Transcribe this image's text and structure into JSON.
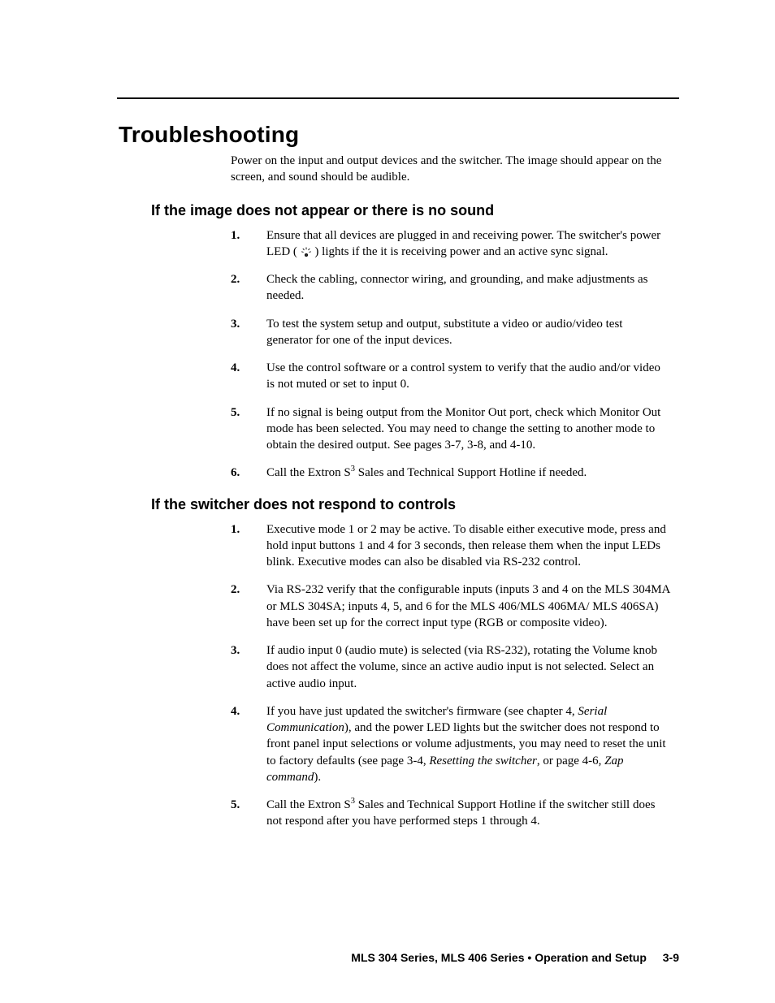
{
  "title": "Troubleshooting",
  "intro": "Power on the input and output devices and the switcher.  The image should appear on the screen, and sound should be audible.",
  "section_a": {
    "heading": "If the image does not appear or there is no sound",
    "steps": [
      {
        "pre": "Ensure that all devices are plugged in and receiving power.  The switcher's power LED (",
        "post": ") lights if the it is receiving power and an active sync signal."
      },
      {
        "text": "Check the cabling, connector wiring, and grounding, and make adjustments as needed."
      },
      {
        "text": "To test the system setup and output, substitute a video or audio/video test generator for one of the input devices."
      },
      {
        "text": "Use the control software or a control system to verify that the audio and/or video is not muted or set to input 0."
      },
      {
        "text": "If no signal is being output from the Monitor Out port, check which Monitor Out mode has been selected.  You may need to change the setting to another mode to obtain the desired output.  See pages 3-7, 3-8, and 4-10."
      },
      {
        "pre": "Call the Extron S",
        "sup": "3",
        "post": " Sales and Technical Support Hotline if needed."
      }
    ]
  },
  "section_b": {
    "heading": "If the switcher does not respond to controls",
    "steps": [
      {
        "text": "Executive mode 1 or 2 may be active.  To disable either executive mode, press and hold input buttons 1 and 4 for 3 seconds, then release them when the input LEDs blink.  Executive modes can also be disabled via RS-232 control."
      },
      {
        "text": "Via RS-232 verify that the configurable inputs (inputs 3 and 4 on the MLS 304MA or MLS 304SA; inputs 4, 5, and 6 for the MLS 406/MLS 406MA/ MLS 406SA) have been set up for the correct input type (RGB or composite video)."
      },
      {
        "text": "If audio input 0 (audio mute) is selected (via RS-232), rotating the Volume knob does not affect the volume, since an active audio input is not selected.  Select an active audio input."
      },
      {
        "html": "If you have just updated the switcher's firmware (see chapter 4, <em>Serial Communication</em>), and the power LED lights but the switcher does not respond to front panel input selections or volume adjustments, you may need to reset the unit to factory defaults (see page 3-4, <em>Resetting the switcher</em>, or page 4-6, <em>Zap command</em>)."
      },
      {
        "pre": "Call the Extron S",
        "sup": "3",
        "post": " Sales and Technical Support Hotline if the switcher still does not respond after you have performed steps 1 through 4."
      }
    ]
  },
  "footer": {
    "text": "MLS 304 Series, MLS 406 Series • Operation and Setup",
    "page": "3-9"
  }
}
